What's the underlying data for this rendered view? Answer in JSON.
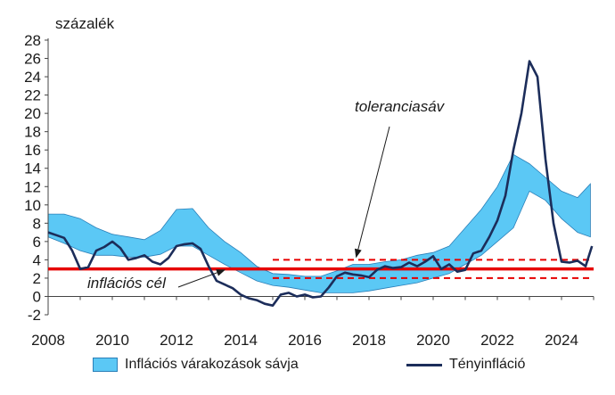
{
  "chart_data": {
    "type": "area",
    "ylabel": "százalék",
    "ylim": [
      -2,
      28
    ],
    "yticks": [
      -2,
      0,
      2,
      4,
      6,
      8,
      10,
      12,
      14,
      16,
      18,
      20,
      22,
      24,
      26,
      28
    ],
    "xlim": [
      2008,
      2025
    ],
    "xticks": [
      2008,
      2010,
      2012,
      2014,
      2016,
      2018,
      2020,
      2022,
      2024
    ],
    "grid": false,
    "legend_position": "bottom",
    "series": [
      {
        "name": "Inflációs várakozások sávja",
        "type": "band",
        "color": "#5bc8f5",
        "x": [
          2008.0,
          2008.5,
          2009.0,
          2009.5,
          2010.0,
          2010.5,
          2011.0,
          2011.5,
          2012.0,
          2012.5,
          2013.0,
          2013.5,
          2014.0,
          2014.5,
          2015.0,
          2015.5,
          2016.0,
          2016.5,
          2017.0,
          2017.5,
          2018.0,
          2018.5,
          2019.0,
          2019.5,
          2020.0,
          2020.5,
          2021.0,
          2021.5,
          2022.0,
          2022.5,
          2023.0,
          2023.5,
          2024.0,
          2024.5,
          2024.9
        ],
        "lower": [
          6.5,
          5.8,
          5.0,
          4.5,
          4.5,
          4.3,
          4.3,
          4.6,
          5.5,
          5.5,
          4.5,
          3.5,
          2.6,
          1.7,
          1.2,
          1.0,
          0.7,
          0.4,
          0.4,
          0.4,
          0.6,
          0.9,
          1.2,
          1.5,
          2.0,
          2.5,
          3.5,
          4.5,
          6.0,
          7.5,
          11.5,
          10.5,
          8.5,
          7.0,
          6.5
        ],
        "upper": [
          9.0,
          9.0,
          8.5,
          7.5,
          6.8,
          6.5,
          6.2,
          7.2,
          9.5,
          9.6,
          7.5,
          6.0,
          4.8,
          3.3,
          2.5,
          2.4,
          2.2,
          2.2,
          2.8,
          3.5,
          3.5,
          3.8,
          4.0,
          4.5,
          4.8,
          5.5,
          7.5,
          9.5,
          12.0,
          15.5,
          14.5,
          13.0,
          11.5,
          10.8,
          12.3
        ]
      },
      {
        "name": "Tényinfláció",
        "type": "line",
        "color": "#1c2d5a",
        "x": [
          2008.0,
          2008.25,
          2008.5,
          2008.75,
          2009.0,
          2009.25,
          2009.5,
          2009.75,
          2010.0,
          2010.25,
          2010.5,
          2010.75,
          2011.0,
          2011.25,
          2011.5,
          2011.75,
          2012.0,
          2012.25,
          2012.5,
          2012.75,
          2013.0,
          2013.25,
          2013.5,
          2013.75,
          2014.0,
          2014.25,
          2014.5,
          2014.75,
          2015.0,
          2015.25,
          2015.5,
          2015.75,
          2016.0,
          2016.25,
          2016.5,
          2016.75,
          2017.0,
          2017.25,
          2017.5,
          2017.75,
          2018.0,
          2018.25,
          2018.5,
          2018.75,
          2019.0,
          2019.25,
          2019.5,
          2019.75,
          2020.0,
          2020.25,
          2020.5,
          2020.75,
          2021.0,
          2021.25,
          2021.5,
          2021.75,
          2022.0,
          2022.25,
          2022.5,
          2022.75,
          2023.0,
          2023.25,
          2023.5,
          2023.75,
          2024.0,
          2024.25,
          2024.5,
          2024.75,
          2024.95
        ],
        "values": [
          7.0,
          6.7,
          6.4,
          5.0,
          3.0,
          3.2,
          5.0,
          5.4,
          6.0,
          5.3,
          4.0,
          4.2,
          4.5,
          3.8,
          3.5,
          4.2,
          5.5,
          5.7,
          5.8,
          5.2,
          3.3,
          1.7,
          1.3,
          0.9,
          0.2,
          -0.2,
          -0.4,
          -0.8,
          -1.0,
          0.2,
          0.4,
          0.0,
          0.2,
          -0.1,
          0.0,
          1.0,
          2.2,
          2.6,
          2.4,
          2.3,
          2.1,
          2.9,
          3.3,
          3.1,
          3.2,
          3.7,
          3.3,
          3.8,
          4.4,
          3.0,
          3.5,
          2.7,
          2.9,
          4.7,
          5.0,
          6.5,
          8.3,
          11.0,
          16.0,
          20.0,
          25.7,
          24.0,
          15.0,
          8.0,
          3.8,
          3.7,
          3.9,
          3.3,
          5.5
        ]
      },
      {
        "name": "inflációs cél",
        "type": "hline",
        "color": "#e60000",
        "value": 3
      },
      {
        "name": "toleranciasáv",
        "type": "hband",
        "color": "#e60000",
        "lower": 2,
        "upper": 4,
        "from": 2015,
        "to": 2025
      }
    ],
    "annotations": [
      {
        "text": "toleranciasáv",
        "target_x": 2017.6,
        "target_y": 4.3
      },
      {
        "text": "inflációs cél",
        "target_x": 2013.5,
        "target_y": 2.9
      }
    ]
  },
  "labels": {
    "ylabel": "százalék",
    "legend_band": "Inflációs várakozások sávja",
    "legend_line": "Tényinfláció",
    "annot_tolerance": "toleranciasáv",
    "annot_target": "inflációs cél"
  }
}
